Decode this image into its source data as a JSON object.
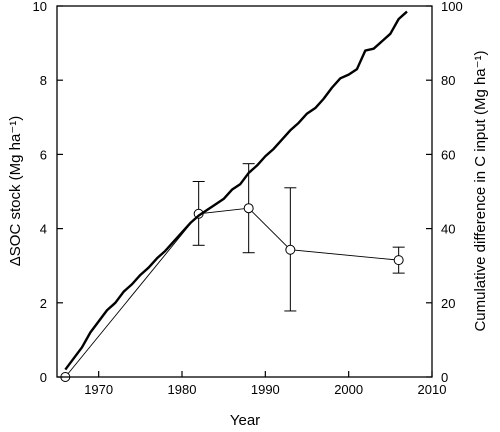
{
  "chart_data": {
    "type": "line",
    "title": "",
    "xlabel": "Year",
    "ylabel_left": "ΔSOC stock (Mg ha⁻¹)",
    "ylabel_right": "Cumulative difference in C input (Mg ha⁻¹)",
    "xlim": [
      1965,
      2010
    ],
    "ylim_left": [
      0,
      10
    ],
    "ylim_right": [
      0,
      100
    ],
    "x_ticks": [
      1970,
      1980,
      1990,
      2000,
      2010
    ],
    "y_left_ticks": [
      0,
      2,
      4,
      6,
      8,
      10
    ],
    "y_right_ticks": [
      0,
      20,
      40,
      60,
      80,
      100
    ],
    "grid": false,
    "legend": "none",
    "series": [
      {
        "axis": "left",
        "style": "thin-line-open-circles-errorbars",
        "x": [
          1966,
          1982,
          1988,
          1993,
          2006
        ],
        "y": [
          0,
          4.4,
          4.55,
          3.43,
          3.15
        ],
        "err_low": [
          0,
          3.55,
          3.35,
          1.78,
          2.8
        ],
        "err_high": [
          0,
          5.27,
          5.75,
          5.1,
          3.5
        ]
      },
      {
        "axis": "right",
        "style": "thick-line",
        "x": [
          1966,
          1967,
          1968,
          1969,
          1970,
          1971,
          1972,
          1973,
          1974,
          1975,
          1976,
          1977,
          1978,
          1979,
          1980,
          1981,
          1982,
          1983,
          1984,
          1985,
          1986,
          1987,
          1988,
          1989,
          1990,
          1991,
          1992,
          1993,
          1994,
          1995,
          1996,
          1997,
          1998,
          1999,
          2000,
          2001,
          2002,
          2003,
          2004,
          2005,
          2006,
          2007
        ],
        "y": [
          2,
          5,
          8,
          12,
          15,
          18,
          20,
          23,
          25,
          27.5,
          29.5,
          32,
          34,
          36.5,
          39,
          41.5,
          43.5,
          45,
          46.5,
          48,
          50.5,
          52,
          55,
          57,
          59.5,
          61.5,
          64,
          66.5,
          68.5,
          71,
          72.5,
          75,
          78,
          80.5,
          81.5,
          83,
          88,
          88.5,
          90.5,
          92.5,
          96.5,
          98.5
        ]
      }
    ]
  }
}
